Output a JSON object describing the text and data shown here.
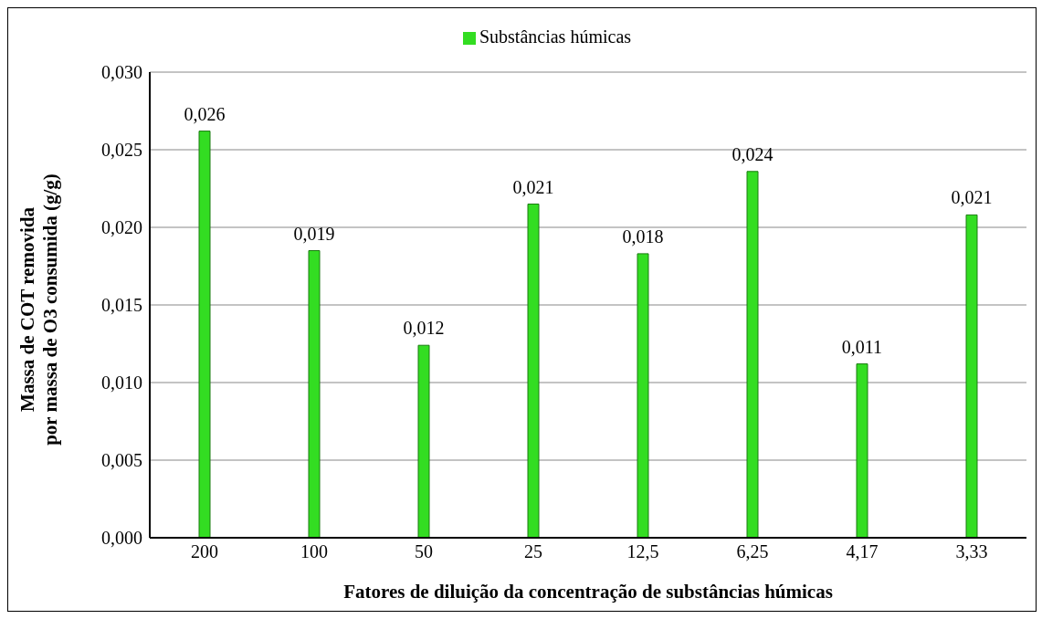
{
  "chart_data": {
    "type": "bar",
    "xlabel": "Fatores de diluição da concentração de substâncias húmicas",
    "ylabel": "Massa de COT removida\npor massa de O3 consumida (g/g)",
    "categories": [
      "200",
      "100",
      "50",
      "25",
      "12,5",
      "6,25",
      "4,17",
      "3,33"
    ],
    "series": [
      {
        "name": "Substâncias húmicas",
        "color": "#33dd22",
        "values": [
          0.0262,
          0.0185,
          0.0124,
          0.0215,
          0.0183,
          0.0236,
          0.0112,
          0.0208
        ],
        "value_labels": [
          "0,026",
          "0,019",
          "0,012",
          "0,021",
          "0,018",
          "0,024",
          "0,011",
          "0,021"
        ]
      }
    ],
    "ylim": [
      0,
      0.03
    ],
    "yticks": [
      {
        "value": 0,
        "label": "0,000"
      },
      {
        "value": 0.005,
        "label": "0,005"
      },
      {
        "value": 0.01,
        "label": "0,010"
      },
      {
        "value": 0.015,
        "label": "0,015"
      },
      {
        "value": 0.02,
        "label": "0,020"
      },
      {
        "value": 0.025,
        "label": "0,025"
      },
      {
        "value": 0.03,
        "label": "0,030"
      }
    ],
    "grid": "y",
    "legend": "top"
  }
}
